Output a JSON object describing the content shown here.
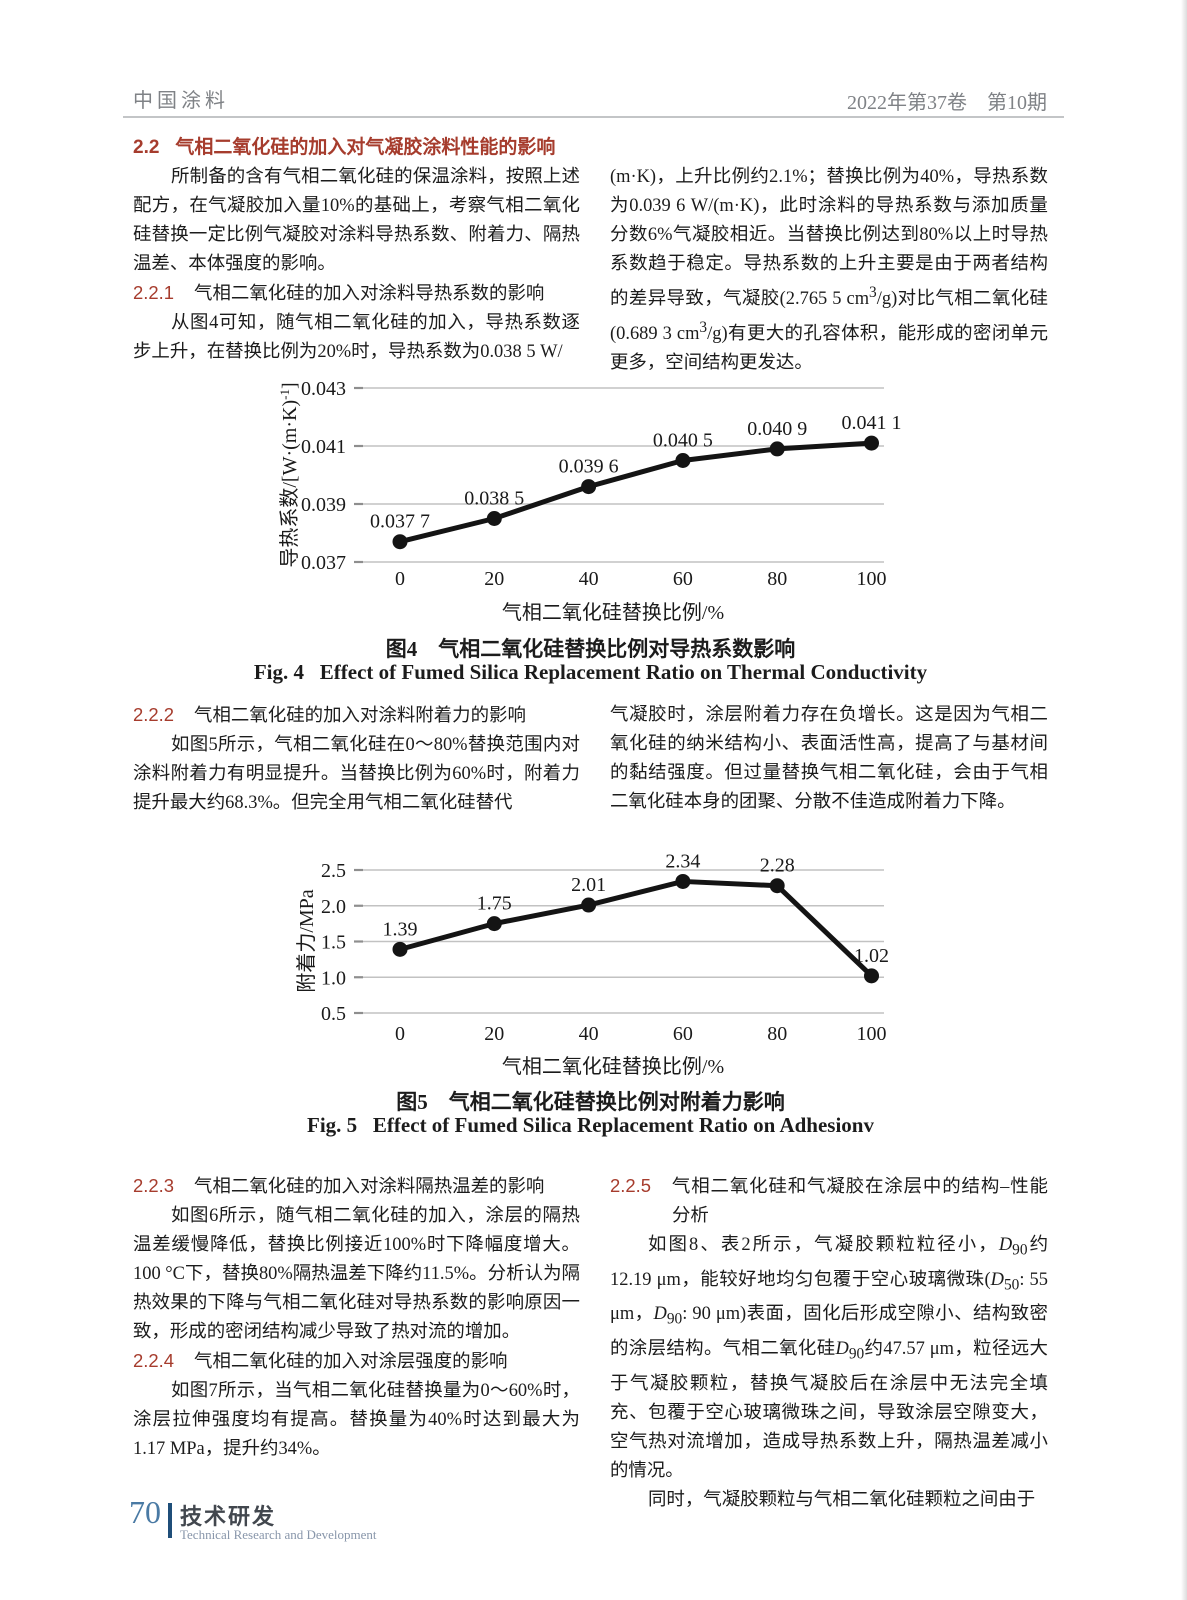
{
  "header": {
    "journal": "中国涂料",
    "issue": "2022年第37卷　第10期"
  },
  "sections": {
    "s22": {
      "no": "2.2",
      "title": "气相二氧化硅的加入对气凝胶涂料性能的影响"
    },
    "p1": "所制备的含有气相二氧化硅的保温涂料，按照上述配方，在气凝胶加入量10%的基础上，考察气相二氧化硅替换一定比例气凝胶对涂料导热系数、附着力、隔热温差、本体强度的影响。",
    "s221": {
      "no": "2.2.1",
      "title": "气相二氧化硅的加入对涂料导热系数的影响"
    },
    "p2": "从图4可知，随气相二氧化硅的加入，导热系数逐步上升，在替换比例为20%时，导热系数为0.038 5 W/",
    "p3_html": "(m·K)，上升比例约2.1%；替换比例为40%，导热系数为0.039 6 W/(m·K)，此时涂料的导热系数与添加质量分数6%气凝胶相近。当替换比例达到80%以上时导热系数趋于稳定。导热系数的上升主要是由于两者结构的差异导致，气凝胶(2.765 5 cm<sup>3</sup>/g)对比气相二氧化硅(0.689 3 cm<sup>3</sup>/g)有更大的孔容体积，能形成的密闭单元更多，空间结构更发达。",
    "s222": {
      "no": "2.2.2",
      "title": "气相二氧化硅的加入对涂料附着力的影响"
    },
    "p4": "如图5所示，气相二氧化硅在0～80%替换范围内对涂料附着力有明显提升。当替换比例为60%时，附着力提升最大约68.3%。但完全用气相二氧化硅替代",
    "p5": "气凝胶时，涂层附着力存在负增长。这是因为气相二氧化硅的纳米结构小、表面活性高，提高了与基材间的黏结强度。但过量替换气相二氧化硅，会由于气相二氧化硅本身的团聚、分散不佳造成附着力下降。",
    "s223": {
      "no": "2.2.3",
      "title": "气相二氧化硅的加入对涂料隔热温差的影响"
    },
    "p6": "如图6所示，随气相二氧化硅的加入，涂层的隔热温差缓慢降低，替换比例接近100%时下降幅度增大。100 °C下，替换80%隔热温差下降约11.5%。分析认为隔热效果的下降与气相二氧化硅对导热系数的影响原因一致，形成的密闭结构减少导致了热对流的增加。",
    "s224": {
      "no": "2.2.4",
      "title": "气相二氧化硅的加入对涂层强度的影响"
    },
    "p7": "如图7所示，当气相二氧化硅替换量为0～60%时，涂层拉伸强度均有提高。替换量为40%时达到最大为1.17 MPa，提升约34%。",
    "s225": {
      "no": "2.2.5",
      "title": "气相二氧化硅和气凝胶在涂层中的结构–性能分析"
    },
    "p8_html": "如图8、表2所示，气凝胶颗粒粒径小，<i>D</i><sub>90</sub>约12.19 μm，能较好地均匀包覆于空心玻璃微珠(<i>D</i><sub>50</sub>: 55 μm，<i>D</i><sub>90</sub>: 90 μm)表面，固化后形成空隙小、结构致密的涂层结构。气相二氧化硅<i>D</i><sub>90</sub>约47.57 μm，粒径远大于气凝胶颗粒，替换气凝胶后在涂层中无法完全填充、包覆于空心玻璃微珠之间，导致涂层空隙变大，空气热对流增加，造成导热系数上升，隔热温差减小的情况。",
    "p9": "同时，气凝胶颗粒与气相二氧化硅颗粒之间由于"
  },
  "figures": {
    "fig4": {
      "caption_cn": "图4　气相二氧化硅替换比例对导热系数影响",
      "caption_en": "Fig. 4   Effect of Fumed Silica Replacement Ratio on Thermal Conductivity"
    },
    "fig5": {
      "caption_cn": "图5　气相二氧化硅替换比例对附着力影响",
      "caption_en": "Fig. 5   Effect of Fumed Silica Replacement Ratio on Adhesionv"
    }
  },
  "chart_data": [
    {
      "id": "fig4",
      "type": "line",
      "x": [
        0,
        20,
        40,
        60,
        80,
        100
      ],
      "values": [
        0.0377,
        0.0385,
        0.0396,
        0.0405,
        0.0409,
        0.0411
      ],
      "point_labels": [
        "0.037 7",
        "0.038 5",
        "0.039 6",
        "0.040 5",
        "0.040 9",
        "0.041 1"
      ],
      "xlabel": "气相二氧化硅替换比例/%",
      "ylabel_parts": [
        {
          "t": "导热系数/[W·(m·K)"
        },
        {
          "t": "-1",
          "sup": true
        },
        {
          "t": "]"
        }
      ],
      "ylim": [
        0.037,
        0.043
      ],
      "y_ticks": [
        {
          "v": 0.037,
          "label": "0.037"
        },
        {
          "v": 0.039,
          "label": "0.039"
        },
        {
          "v": 0.041,
          "label": "0.041"
        },
        {
          "v": 0.043,
          "label": "0.043"
        }
      ],
      "grid": true,
      "line_color": "#141414"
    },
    {
      "id": "fig5",
      "type": "line",
      "x": [
        0,
        20,
        40,
        60,
        80,
        100
      ],
      "values": [
        1.39,
        1.75,
        2.01,
        2.34,
        2.28,
        1.02
      ],
      "point_labels": [
        "1.39",
        "1.75",
        "2.01",
        "2.34",
        "2.28",
        "1.02"
      ],
      "xlabel": "气相二氧化硅替换比例/%",
      "ylabel_parts": [
        {
          "t": "附着力/MPa"
        }
      ],
      "ylim": [
        0.5,
        2.5
      ],
      "y_ticks": [
        {
          "v": 0.5,
          "label": "0.5"
        },
        {
          "v": 1.0,
          "label": "1.0"
        },
        {
          "v": 1.5,
          "label": "1.5"
        },
        {
          "v": 2.0,
          "label": "2.0"
        },
        {
          "v": 2.5,
          "label": "2.5"
        }
      ],
      "grid": true,
      "line_color": "#141414"
    }
  ],
  "footer": {
    "page_no": "70",
    "column_cn": "技术研发",
    "column_en": "Technical Research and Development"
  }
}
